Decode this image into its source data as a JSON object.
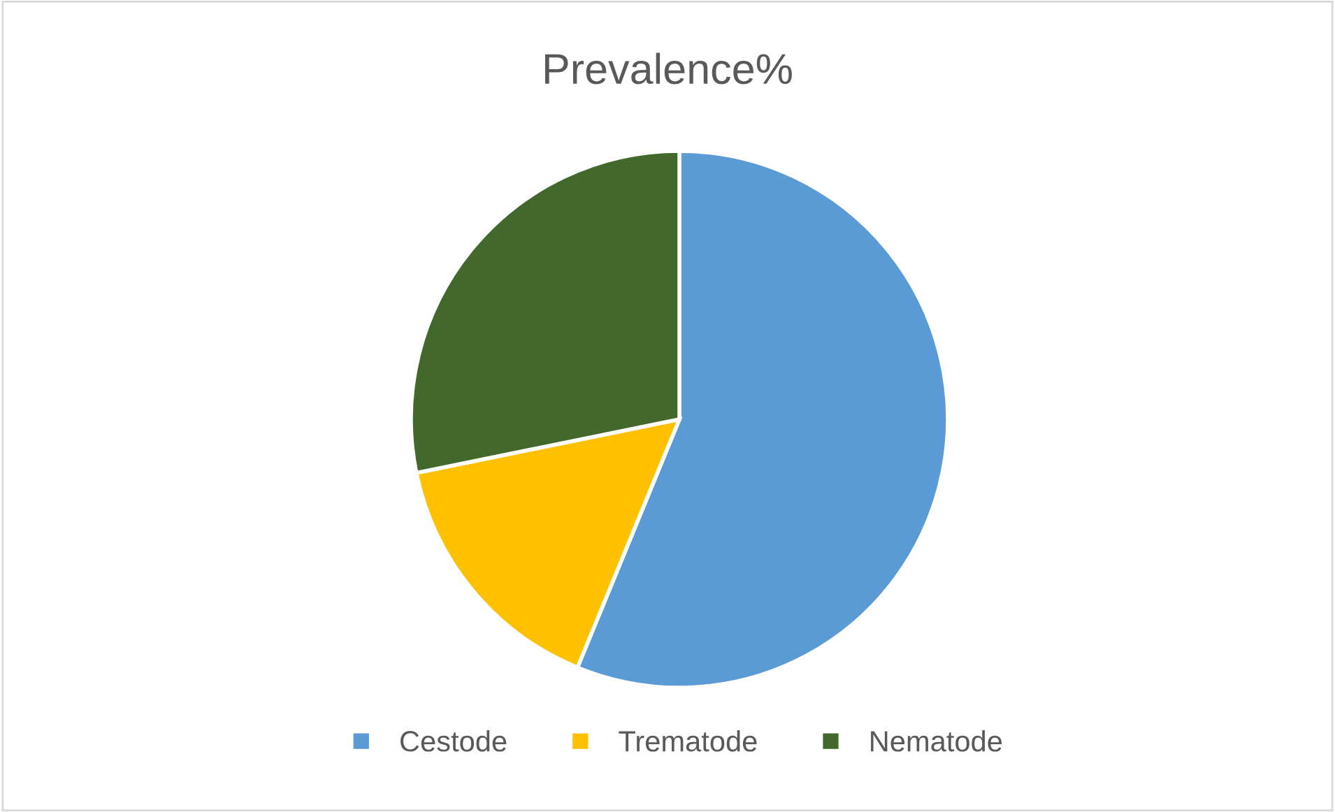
{
  "chart_data": {
    "type": "pie",
    "title": "Prevalence%",
    "categories": [
      "Cestode",
      "Trematode",
      "Nematode"
    ],
    "values": [
      56.2,
      15.6,
      28.2
    ],
    "colors": [
      "#5b9bd5",
      "#ffc000",
      "#43682b"
    ],
    "legend": "bottom"
  }
}
